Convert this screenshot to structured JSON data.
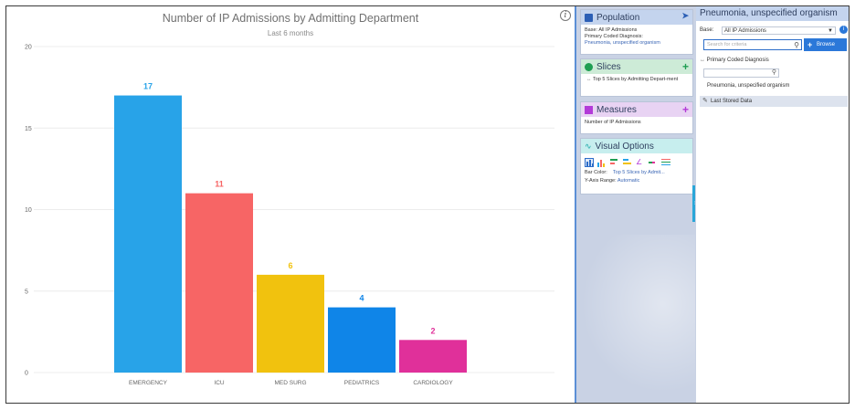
{
  "chart_data": {
    "type": "bar",
    "title": "Number of IP Admissions by Admitting Department",
    "subtitle": "Last 6 months",
    "categories": [
      "EMERGENCY",
      "ICU",
      "MED SURG",
      "PEDIATRICS",
      "CARDIOLOGY"
    ],
    "values": [
      17,
      11,
      6,
      4,
      2
    ],
    "colors": [
      "#28a3e8",
      "#f76565",
      "#f1c20e",
      "#0f85e8",
      "#e0309a"
    ],
    "yticks": [
      0,
      5,
      10,
      15,
      20
    ],
    "ylim": [
      0,
      20
    ],
    "grid": true,
    "xlabel": "",
    "ylabel": ""
  },
  "info_icon": "info-icon",
  "sidebar": {
    "population": {
      "title": "Population",
      "base_label": "Base:",
      "base_value": "All IP Admissions",
      "diagnosis_label": "Primary Coded Diagnosis:",
      "diagnosis_value": "Pneumonia, unspecified organism",
      "color": "#2c5fb5"
    },
    "slices": {
      "title": "Slices",
      "item": "Top 5 Slices by Admitting Depart-ment",
      "color": "#1f9e52"
    },
    "measures": {
      "title": "Measures",
      "item": "Number of IP Admissions",
      "color": "#b33ad8"
    },
    "visual_options": {
      "title": "Visual Options",
      "bar_color_label": "Bar Color:",
      "bar_color_value": "Top 5 Slices by Admit...",
      "y_axis_label": "Y-Axis Range:",
      "y_axis_value": "Automatic",
      "color": "#1aa7a8"
    }
  },
  "criteria_panel": {
    "title": "Pneumonia, unspecified organism",
    "base_label": "Base:",
    "base_value": "All IP Admissions",
    "search_placeholder": "Search for criteria",
    "browse_label": "Browse",
    "criteria_name": "Primary Coded Diagnosis",
    "criteria_value": "Pneumonia, unspecified organism",
    "last_stored": "Last Stored Data"
  }
}
